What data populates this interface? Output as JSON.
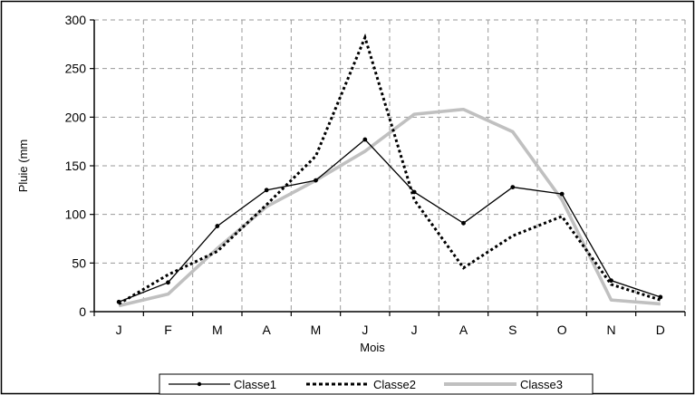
{
  "chart_data": {
    "type": "line",
    "xlabel": "Mois",
    "ylabel": "Pluie (mm",
    "categories": [
      "J",
      "F",
      "M",
      "A",
      "M",
      "J",
      "J",
      "A",
      "S",
      "O",
      "N",
      "D"
    ],
    "ylim": [
      0,
      300
    ],
    "yticks": [
      "0",
      "50",
      "100",
      "150",
      "200",
      "250",
      "300"
    ],
    "grid": true,
    "legend_position": "bottom",
    "series": [
      {
        "name": "Classe1",
        "color": "#000000",
        "style": "solid-marker",
        "values": [
          10,
          30,
          88,
          125,
          135,
          177,
          123,
          91,
          128,
          121,
          32,
          15
        ]
      },
      {
        "name": "Classe2",
        "color": "#000000",
        "style": "dotted",
        "values": [
          8,
          38,
          62,
          110,
          160,
          282,
          115,
          45,
          78,
          98,
          28,
          12
        ]
      },
      {
        "name": "Classe3",
        "color": "#c0c0c0",
        "style": "thick",
        "values": [
          6,
          18,
          65,
          108,
          135,
          165,
          203,
          208,
          185,
          115,
          12,
          8
        ]
      }
    ]
  }
}
